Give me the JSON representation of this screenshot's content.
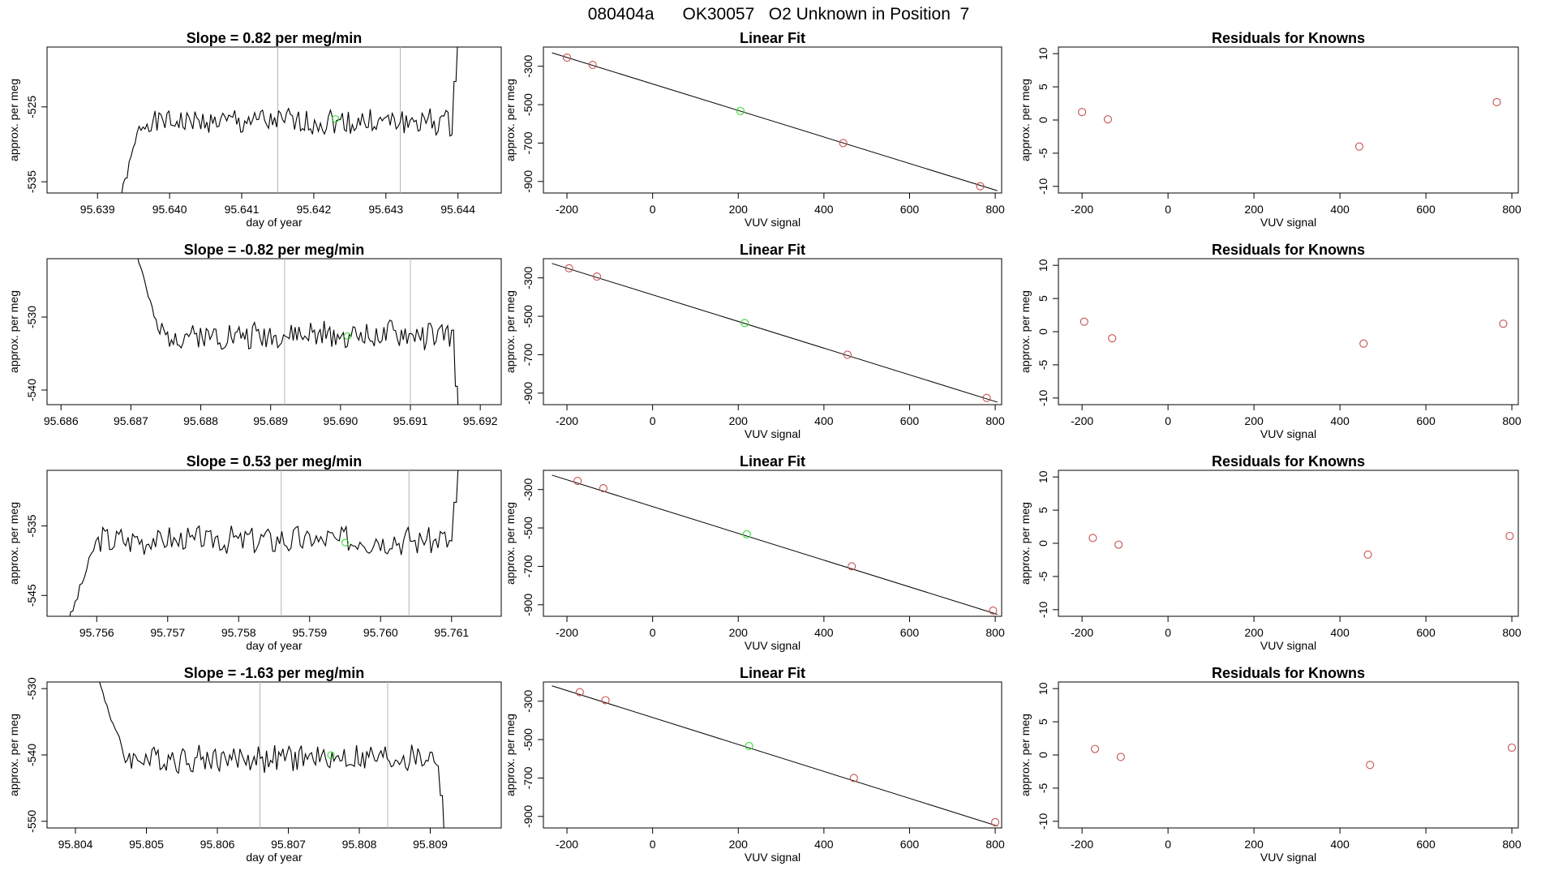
{
  "figure_title": "080404a      OK30057   O2 Unknown in Position  7",
  "colors": {
    "line": "#000000",
    "known": "#c85050",
    "unknown": "#32dc32",
    "vline": "#b4b4b4"
  },
  "chart_data": [
    {
      "type": "line",
      "row": 1,
      "title": "Slope =  0.82  per meg/min",
      "xlabel": "day of year",
      "ylabel": "approx. per meg",
      "xlim": [
        95.6383,
        95.6446
      ],
      "ylim": [
        -536.5,
        -517
      ],
      "xticks": [
        95.639,
        95.64,
        95.641,
        95.642,
        95.643,
        95.644
      ],
      "yticks": [
        -525,
        -535
      ],
      "vlines": [
        95.6415,
        95.6432
      ],
      "base": -527.0,
      "start_value": -538,
      "end_value": -515,
      "marker": [
        95.6423,
        -526.6
      ],
      "x_first": 95.6393,
      "x_last": 95.644,
      "rise_end": 95.6396,
      "seed": 1
    },
    {
      "type": "scatter",
      "row": 1,
      "title": "Linear Fit",
      "xlabel": "VUV signal",
      "ylabel": "approx. per meg",
      "xlim": [
        -255,
        815
      ],
      "ylim": [
        -960,
        -200
      ],
      "xticks": [
        -200,
        0,
        200,
        400,
        600,
        800
      ],
      "yticks": [
        -300,
        -500,
        -700,
        -900
      ],
      "fit_line": [
        [
          -235,
          -230
        ],
        [
          805,
          -948
        ]
      ],
      "points": [
        {
          "x": -200,
          "y": -255,
          "kind": "known"
        },
        {
          "x": -140,
          "y": -293,
          "kind": "known"
        },
        {
          "x": 205,
          "y": -533,
          "kind": "unknown"
        },
        {
          "x": 445,
          "y": -700,
          "kind": "known"
        },
        {
          "x": 765,
          "y": -925,
          "kind": "known"
        }
      ]
    },
    {
      "type": "scatter",
      "row": 1,
      "title": "Residuals for Knowns",
      "xlabel": "VUV signal",
      "ylabel": "approx. per meg",
      "xlim": [
        -255,
        815
      ],
      "ylim": [
        -11,
        11
      ],
      "xticks": [
        -200,
        0,
        200,
        400,
        600,
        800
      ],
      "yticks": [
        10,
        5,
        0,
        -5,
        -10
      ],
      "points": [
        {
          "x": -200,
          "y": 1.2,
          "kind": "known"
        },
        {
          "x": -140,
          "y": 0.1,
          "kind": "known"
        },
        {
          "x": 445,
          "y": -4.0,
          "kind": "known"
        },
        {
          "x": 765,
          "y": 2.7,
          "kind": "known"
        }
      ]
    },
    {
      "type": "line",
      "row": 2,
      "title": "Slope =  -0.82  per meg/min",
      "xlabel": "",
      "ylabel": "approx. per meg",
      "xlim": [
        95.6858,
        95.6923
      ],
      "ylim": [
        -542,
        -522
      ],
      "xticks": [
        95.686,
        95.687,
        95.688,
        95.689,
        95.69,
        95.691,
        95.692
      ],
      "yticks": [
        -530,
        -540
      ],
      "vlines": [
        95.6892,
        95.691
      ],
      "base": -532.5,
      "start_value": -518,
      "end_value": -548,
      "marker": [
        95.6901,
        -532.6
      ],
      "x_first": 95.687,
      "x_last": 95.6917,
      "rise_end": 95.6874,
      "seed": 2
    },
    {
      "type": "scatter",
      "row": 2,
      "title": "Linear Fit",
      "xlabel": "VUV signal",
      "ylabel": "approx. per meg",
      "xlim": [
        -255,
        815
      ],
      "ylim": [
        -960,
        -200
      ],
      "xticks": [
        -200,
        0,
        200,
        400,
        600,
        800
      ],
      "yticks": [
        -300,
        -500,
        -700,
        -900
      ],
      "fit_line": [
        [
          -235,
          -225
        ],
        [
          805,
          -947
        ]
      ],
      "points": [
        {
          "x": -195,
          "y": -250,
          "kind": "known"
        },
        {
          "x": -130,
          "y": -293,
          "kind": "known"
        },
        {
          "x": 215,
          "y": -535,
          "kind": "unknown"
        },
        {
          "x": 455,
          "y": -700,
          "kind": "known"
        },
        {
          "x": 780,
          "y": -925,
          "kind": "known"
        }
      ]
    },
    {
      "type": "scatter",
      "row": 2,
      "title": "Residuals for Knowns",
      "xlabel": "VUV signal",
      "ylabel": "approx. per meg",
      "xlim": [
        -255,
        815
      ],
      "ylim": [
        -11,
        11
      ],
      "xticks": [
        -200,
        0,
        200,
        400,
        600,
        800
      ],
      "yticks": [
        10,
        5,
        0,
        -5,
        -10
      ],
      "points": [
        {
          "x": -195,
          "y": 1.5,
          "kind": "known"
        },
        {
          "x": -130,
          "y": -1.0,
          "kind": "known"
        },
        {
          "x": 455,
          "y": -1.8,
          "kind": "known"
        },
        {
          "x": 780,
          "y": 1.2,
          "kind": "known"
        }
      ]
    },
    {
      "type": "line",
      "row": 3,
      "title": "Slope =  0.53  per meg/min",
      "xlabel": "day of year",
      "ylabel": "approx. per meg",
      "xlim": [
        95.7553,
        95.7617
      ],
      "ylim": [
        -548,
        -527
      ],
      "xticks": [
        95.756,
        95.757,
        95.758,
        95.759,
        95.76,
        95.761
      ],
      "yticks": [
        -535,
        -545
      ],
      "vlines": [
        95.7586,
        95.7604
      ],
      "base": -537.0,
      "start_value": -549,
      "end_value": -525,
      "marker": [
        95.7595,
        -537.4
      ],
      "x_first": 95.7556,
      "x_last": 95.7611,
      "rise_end": 95.756,
      "seed": 3
    },
    {
      "type": "scatter",
      "row": 3,
      "title": "Linear Fit",
      "xlabel": "VUV signal",
      "ylabel": "approx. per meg",
      "xlim": [
        -255,
        815
      ],
      "ylim": [
        -960,
        -200
      ],
      "xticks": [
        -200,
        0,
        200,
        400,
        600,
        800
      ],
      "yticks": [
        -300,
        -500,
        -700,
        -900
      ],
      "fit_line": [
        [
          -235,
          -225
        ],
        [
          805,
          -950
        ]
      ],
      "points": [
        {
          "x": -175,
          "y": -255,
          "kind": "known"
        },
        {
          "x": -115,
          "y": -293,
          "kind": "known"
        },
        {
          "x": 220,
          "y": -533,
          "kind": "unknown"
        },
        {
          "x": 465,
          "y": -700,
          "kind": "known"
        },
        {
          "x": 795,
          "y": -930,
          "kind": "known"
        }
      ]
    },
    {
      "type": "scatter",
      "row": 3,
      "title": "Residuals for Knowns",
      "xlabel": "VUV signal",
      "ylabel": "approx. per meg",
      "xlim": [
        -255,
        815
      ],
      "ylim": [
        -11,
        11
      ],
      "xticks": [
        -200,
        0,
        200,
        400,
        600,
        800
      ],
      "yticks": [
        10,
        5,
        0,
        -5,
        -10
      ],
      "points": [
        {
          "x": -175,
          "y": 0.8,
          "kind": "known"
        },
        {
          "x": -115,
          "y": -0.2,
          "kind": "known"
        },
        {
          "x": 465,
          "y": -1.7,
          "kind": "known"
        },
        {
          "x": 795,
          "y": 1.1,
          "kind": "known"
        }
      ]
    },
    {
      "type": "line",
      "row": 4,
      "title": "Slope =  -1.63  per meg/min",
      "xlabel": "day of year",
      "ylabel": "approx. per meg",
      "xlim": [
        95.8036,
        95.81
      ],
      "ylim": [
        -551,
        -529
      ],
      "xticks": [
        95.804,
        95.805,
        95.806,
        95.807,
        95.808,
        95.809
      ],
      "yticks": [
        -530,
        -540,
        -550
      ],
      "vlines": [
        95.8066,
        95.8084
      ],
      "base": -540.5,
      "start_value": -528,
      "end_value": -553,
      "marker": [
        95.8076,
        -540.0
      ],
      "x_first": 95.8043,
      "x_last": 95.8092,
      "rise_end": 95.8047,
      "seed": 4
    },
    {
      "type": "scatter",
      "row": 4,
      "title": "Linear Fit",
      "xlabel": "VUV signal",
      "ylabel": "approx. per meg",
      "xlim": [
        -255,
        815
      ],
      "ylim": [
        -960,
        -200
      ],
      "xticks": [
        -200,
        0,
        200,
        400,
        600,
        800
      ],
      "yticks": [
        -300,
        -500,
        -700,
        -900
      ],
      "fit_line": [
        [
          -235,
          -220
        ],
        [
          805,
          -950
        ]
      ],
      "points": [
        {
          "x": -170,
          "y": -253,
          "kind": "known"
        },
        {
          "x": -110,
          "y": -295,
          "kind": "known"
        },
        {
          "x": 225,
          "y": -533,
          "kind": "unknown"
        },
        {
          "x": 470,
          "y": -700,
          "kind": "known"
        },
        {
          "x": 800,
          "y": -930,
          "kind": "known"
        }
      ]
    },
    {
      "type": "scatter",
      "row": 4,
      "title": "Residuals for Knowns",
      "xlabel": "VUV signal",
      "ylabel": "approx. per meg",
      "xlim": [
        -255,
        815
      ],
      "ylim": [
        -11,
        11
      ],
      "xticks": [
        -200,
        0,
        200,
        400,
        600,
        800
      ],
      "yticks": [
        10,
        5,
        0,
        -5,
        -10
      ],
      "points": [
        {
          "x": -170,
          "y": 0.9,
          "kind": "known"
        },
        {
          "x": -110,
          "y": -0.3,
          "kind": "known"
        },
        {
          "x": 470,
          "y": -1.5,
          "kind": "known"
        },
        {
          "x": 800,
          "y": 1.1,
          "kind": "known"
        }
      ]
    }
  ]
}
